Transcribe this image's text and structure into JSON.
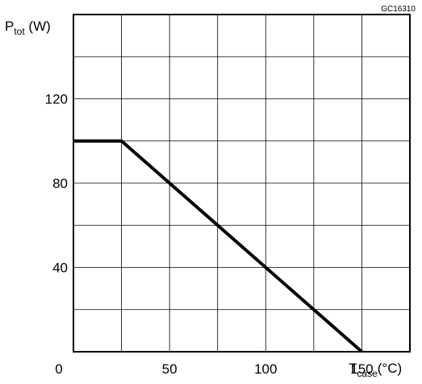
{
  "chart_data": {
    "type": "line",
    "figure_code": "GC16310",
    "ylabel": {
      "symbol": "P",
      "subscript": "tot",
      "unit": " (W)"
    },
    "xlabel": {
      "symbol": "T",
      "subscript": "case",
      "unit": "(°C)"
    },
    "xlim": [
      0,
      175
    ],
    "ylim": [
      0,
      160
    ],
    "x_ticks": [
      0,
      50,
      100,
      150
    ],
    "y_ticks": [
      40,
      80,
      120
    ],
    "x_tick_labels": [
      "0",
      "50",
      "100",
      "150"
    ],
    "y_tick_labels": [
      "40",
      "80",
      "120"
    ],
    "x_grid_step": 25,
    "y_grid_step": 20,
    "grid": true,
    "series": [
      {
        "x": [
          0,
          25,
          150
        ],
        "y": [
          100,
          100,
          0
        ]
      }
    ]
  }
}
